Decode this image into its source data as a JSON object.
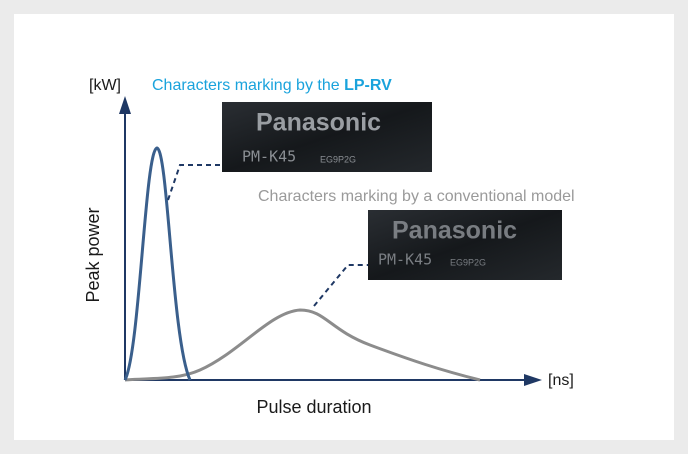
{
  "y_unit": "[kW]",
  "title_prefix": "Characters marking by the ",
  "title_model": "LP-RV",
  "y_label": "Peak power",
  "x_label": "Pulse duration",
  "x_unit": "[ns]",
  "conventional_label": "Characters marking by a conventional model",
  "plates": [
    {
      "brand": "Panasonic",
      "model": "PM-K45",
      "code": "EG9P2G"
    },
    {
      "brand": "Panasonic",
      "model": "PM-K45",
      "code": "EG9P2G"
    }
  ]
}
